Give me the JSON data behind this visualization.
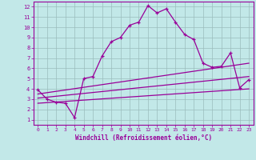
{
  "xlabel": "Windchill (Refroidissement éolien,°C)",
  "bg_color": "#c2e8e8",
  "grid_color": "#9bbcbc",
  "line_color": "#990099",
  "xlim": [
    -0.5,
    23.5
  ],
  "ylim": [
    0.5,
    12.5
  ],
  "xticks": [
    0,
    1,
    2,
    3,
    4,
    5,
    6,
    7,
    8,
    9,
    10,
    11,
    12,
    13,
    14,
    15,
    16,
    17,
    18,
    19,
    20,
    21,
    22,
    23
  ],
  "yticks": [
    1,
    2,
    3,
    4,
    5,
    6,
    7,
    8,
    9,
    10,
    11,
    12
  ],
  "series1_x": [
    0,
    1,
    2,
    3,
    4,
    5,
    6,
    7,
    8,
    9,
    10,
    11,
    12,
    13,
    14,
    15,
    16,
    17,
    18,
    19,
    20,
    21,
    22,
    23
  ],
  "series1_y": [
    3.9,
    3.0,
    2.7,
    2.6,
    1.2,
    5.0,
    5.2,
    7.2,
    8.6,
    9.0,
    10.2,
    10.5,
    12.1,
    11.4,
    11.8,
    10.5,
    9.3,
    8.8,
    6.5,
    6.1,
    6.2,
    7.5,
    4.1,
    4.9
  ],
  "series2_x": [
    0,
    23
  ],
  "series2_y": [
    3.5,
    6.5
  ],
  "series3_x": [
    0,
    23
  ],
  "series3_y": [
    3.1,
    5.2
  ],
  "series4_x": [
    0,
    23
  ],
  "series4_y": [
    2.6,
    4.0
  ]
}
